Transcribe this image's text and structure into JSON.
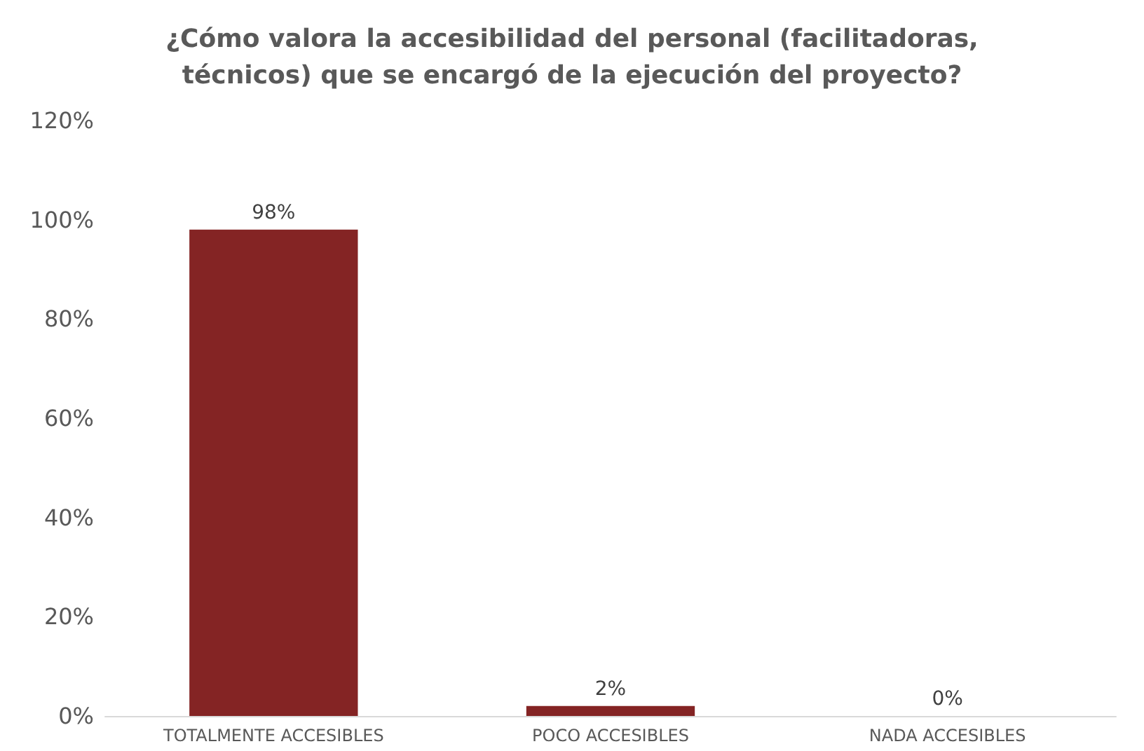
{
  "chart_data": {
    "type": "bar",
    "title": "¿Cómo valora la accesibilidad del personal (facilitadoras,\ntécnicos) que se encargó de la ejecución del proyecto?",
    "categories": [
      "TOTALMENTE ACCESIBLES",
      "POCO ACCESIBLES",
      "NADA ACCESIBLES"
    ],
    "values": [
      98,
      2,
      0
    ],
    "value_labels": [
      "98%",
      "2%",
      "0%"
    ],
    "color": "#842424",
    "ylim": [
      0,
      120
    ],
    "yticks": [
      {
        "value": 0,
        "label": "0%"
      },
      {
        "value": 20,
        "label": "20%"
      },
      {
        "value": 40,
        "label": "40%"
      },
      {
        "value": 60,
        "label": "60%"
      },
      {
        "value": 80,
        "label": "80%"
      },
      {
        "value": 100,
        "label": "100%"
      },
      {
        "value": 120,
        "label": "120%"
      }
    ],
    "grid": false
  }
}
